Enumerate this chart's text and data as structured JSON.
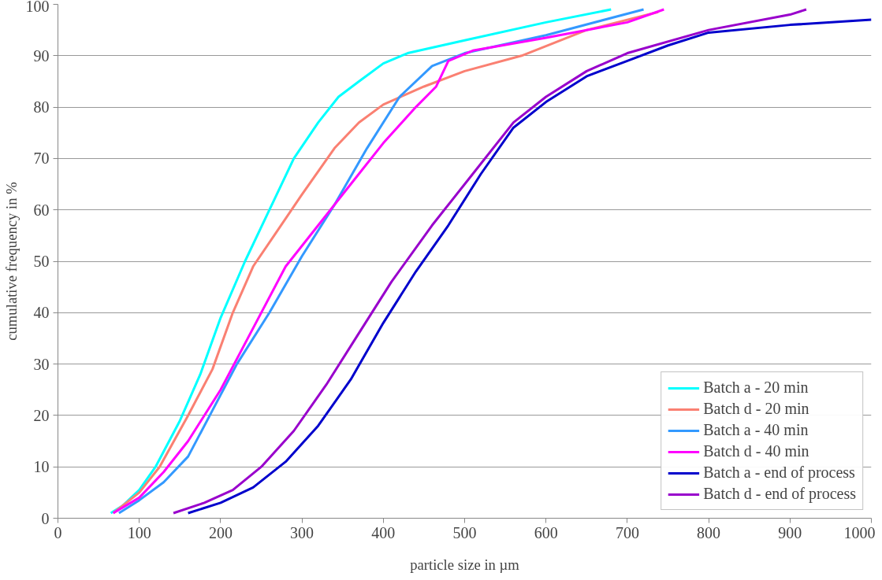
{
  "chart_data": {
    "type": "line",
    "xlabel": "particle size in µm",
    "ylabel": "cumulative frequency in %",
    "xlim": [
      0,
      1000
    ],
    "ylim": [
      0,
      100
    ],
    "xticks": [
      0,
      100,
      200,
      300,
      400,
      500,
      600,
      700,
      800,
      900,
      1000
    ],
    "yticks": [
      0,
      10,
      20,
      30,
      40,
      50,
      60,
      70,
      80,
      90,
      100
    ],
    "grid": "y",
    "legend": "bottom right",
    "marker": "none",
    "line_style": "solid",
    "series": [
      {
        "name": "Batch a - 20 min",
        "color": "#00ffff",
        "x": [
          65,
          80,
          100,
          120,
          150,
          175,
          200,
          230,
          260,
          290,
          320,
          345,
          370,
          400,
          430,
          500,
          600,
          680
        ],
        "values": [
          1,
          2.5,
          5.5,
          10,
          19,
          28,
          39,
          50,
          60,
          70,
          77,
          82,
          85,
          88.5,
          90.5,
          93,
          96.5,
          99
        ]
      },
      {
        "name": "Batch d - 20 min",
        "color": "#fa8072",
        "x": [
          68,
          100,
          125,
          160,
          190,
          215,
          240,
          270,
          300,
          340,
          370,
          400,
          450,
          500,
          570,
          650,
          738
        ],
        "values": [
          1,
          5,
          10,
          20,
          29,
          40,
          49,
          56,
          63,
          72,
          77,
          80.5,
          84,
          87,
          90,
          95,
          98.5
        ]
      },
      {
        "name": "Batch a - 40 min",
        "color": "#3399ff",
        "x": [
          75,
          100,
          130,
          160,
          190,
          220,
          260,
          300,
          340,
          380,
          420,
          460,
          500,
          600,
          720
        ],
        "values": [
          1,
          3.5,
          7,
          12,
          21,
          30,
          40,
          51,
          61,
          72,
          82,
          88,
          90.5,
          94,
          99
        ]
      },
      {
        "name": "Batch d - 40 min",
        "color": "#ff00ff",
        "x": [
          68,
          100,
          130,
          160,
          200,
          240,
          280,
          320,
          360,
          400,
          440,
          465,
          480,
          510,
          600,
          700,
          745
        ],
        "values": [
          1,
          4,
          9,
          15,
          25,
          37,
          49,
          57,
          65,
          73,
          80,
          84,
          89,
          91,
          93.5,
          96.5,
          99
        ]
      },
      {
        "name": "Batch a - end of process",
        "color": "#0000cc",
        "x": [
          160,
          200,
          240,
          280,
          320,
          360,
          400,
          440,
          480,
          520,
          560,
          600,
          650,
          700,
          750,
          800,
          900,
          1000
        ],
        "values": [
          1,
          3,
          6,
          11,
          18,
          27,
          38,
          48,
          57,
          67,
          76,
          81,
          86,
          89,
          92,
          94.5,
          96,
          97
        ]
      },
      {
        "name": "Batch d - end of process",
        "color": "#9900cc",
        "x": [
          142,
          180,
          215,
          250,
          290,
          330,
          370,
          410,
          460,
          510,
          560,
          600,
          650,
          700,
          800,
          900,
          920
        ],
        "values": [
          1,
          3,
          5.5,
          10,
          17,
          26,
          36,
          46,
          57,
          67,
          77,
          82,
          87,
          90.5,
          95,
          98,
          99
        ]
      }
    ]
  }
}
